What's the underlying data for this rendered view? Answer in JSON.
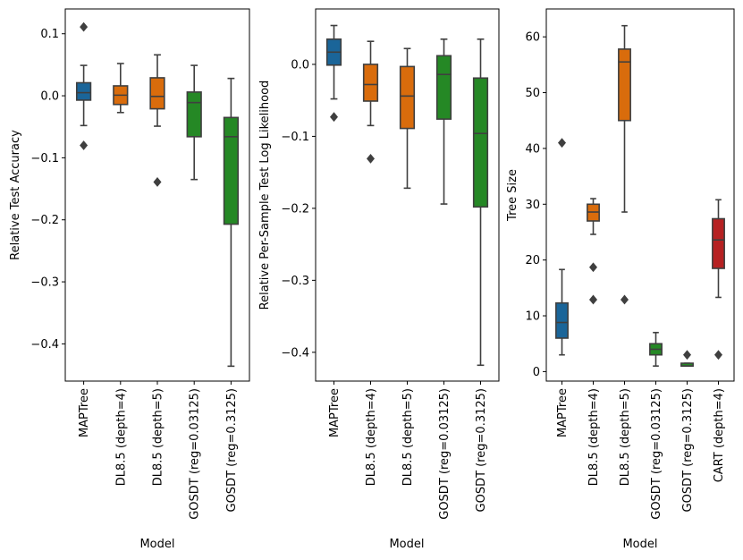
{
  "chart_data": [
    {
      "type": "box",
      "ylabel": "Relative Test Accuracy",
      "xlabel": "Model",
      "ylim": [
        -0.46,
        0.14
      ],
      "yticks": [
        0.1,
        0.0,
        -0.1,
        -0.2,
        -0.3,
        -0.4
      ],
      "ytick_labels": [
        "0.1",
        "0.0",
        "−0.1",
        "−0.2",
        "−0.3",
        "−0.4"
      ],
      "categories": [
        "MAPTree",
        "DL8.5 (depth=4)",
        "DL8.5 (depth=5)",
        "GOSDT (reg=0.03125)",
        "GOSDT (reg=0.3125)"
      ],
      "boxes": [
        {
          "color": "#1f77b4",
          "whislo": -0.048,
          "q1": -0.007,
          "med": 0.005,
          "q3": 0.021,
          "whishi": 0.049,
          "fliers": [
            0.111,
            -0.08
          ]
        },
        {
          "color": "#ff7f0e",
          "whislo": -0.027,
          "q1": -0.014,
          "med": 0.001,
          "q3": 0.016,
          "whishi": 0.052,
          "fliers": []
        },
        {
          "color": "#ff7f0e",
          "whislo": -0.049,
          "q1": -0.021,
          "med": -0.001,
          "q3": 0.029,
          "whishi": 0.066,
          "fliers": [
            -0.139
          ]
        },
        {
          "color": "#2ca02c",
          "whislo": -0.135,
          "q1": -0.066,
          "med": -0.011,
          "q3": 0.006,
          "whishi": 0.049,
          "fliers": []
        },
        {
          "color": "#2ca02c",
          "whislo": -0.436,
          "q1": -0.207,
          "med": -0.066,
          "q3": -0.035,
          "whishi": 0.028,
          "fliers": []
        }
      ]
    },
    {
      "type": "box",
      "ylabel": "Relative Per-Sample Test Log Likelihood",
      "xlabel": "Model",
      "ylim": [
        -0.44,
        0.077
      ],
      "yticks": [
        0.0,
        -0.1,
        -0.2,
        -0.3,
        -0.4
      ],
      "ytick_labels": [
        "0.0",
        "−0.1",
        "−0.2",
        "−0.3",
        "−0.4"
      ],
      "categories": [
        "MAPTree",
        "DL8.5 (depth=4)",
        "DL8.5 (depth=5)",
        "GOSDT (reg=0.03125)",
        "GOSDT (reg=0.3125)"
      ],
      "boxes": [
        {
          "color": "#1f77b4",
          "whislo": -0.048,
          "q1": -0.001,
          "med": 0.017,
          "q3": 0.035,
          "whishi": 0.054,
          "fliers": [
            -0.073
          ]
        },
        {
          "color": "#ff7f0e",
          "whislo": -0.085,
          "q1": -0.051,
          "med": -0.028,
          "q3": 0.0,
          "whishi": 0.032,
          "fliers": [
            -0.131
          ]
        },
        {
          "color": "#ff7f0e",
          "whislo": -0.172,
          "q1": -0.089,
          "med": -0.044,
          "q3": -0.003,
          "whishi": 0.022,
          "fliers": []
        },
        {
          "color": "#2ca02c",
          "whislo": -0.194,
          "q1": -0.076,
          "med": -0.014,
          "q3": 0.012,
          "whishi": 0.035,
          "fliers": []
        },
        {
          "color": "#2ca02c",
          "whislo": -0.418,
          "q1": -0.198,
          "med": -0.096,
          "q3": -0.019,
          "whishi": 0.035,
          "fliers": []
        }
      ]
    },
    {
      "type": "box",
      "ylabel": "Tree Size",
      "xlabel": "Model",
      "ylim": [
        -1.7,
        65.0
      ],
      "yticks": [
        0,
        10,
        20,
        30,
        40,
        50,
        60
      ],
      "ytick_labels": [
        "0",
        "10",
        "20",
        "30",
        "40",
        "50",
        "60"
      ],
      "categories": [
        "MAPTree",
        "DL8.5 (depth=4)",
        "DL8.5 (depth=5)",
        "GOSDT (reg=0.03125)",
        "GOSDT (reg=0.3125)",
        "CART (depth=4)"
      ],
      "boxes": [
        {
          "color": "#1f77b4",
          "whislo": 3.0,
          "q1": 6.0,
          "med": 8.8,
          "q3": 12.3,
          "whishi": 18.3,
          "fliers": [
            41.0
          ]
        },
        {
          "color": "#ff7f0e",
          "whislo": 24.6,
          "q1": 27.0,
          "med": 28.6,
          "q3": 30.0,
          "whishi": 31.0,
          "fliers": [
            18.7,
            12.9
          ]
        },
        {
          "color": "#ff7f0e",
          "whislo": 28.6,
          "q1": 45.0,
          "med": 55.5,
          "q3": 57.8,
          "whishi": 62.0,
          "fliers": [
            12.9
          ]
        },
        {
          "color": "#2ca02c",
          "whislo": 1.0,
          "q1": 3.0,
          "med": 4.0,
          "q3": 5.0,
          "whishi": 7.0,
          "fliers": []
        },
        {
          "color": "#2ca02c",
          "whislo": 1.0,
          "q1": 1.0,
          "med": 1.0,
          "q3": 1.5,
          "whishi": 1.5,
          "fliers": [
            3.0
          ]
        },
        {
          "color": "#d62728",
          "whislo": 13.3,
          "q1": 18.5,
          "med": 23.6,
          "q3": 27.4,
          "whishi": 30.8,
          "fliers": [
            3.0
          ]
        }
      ]
    }
  ]
}
